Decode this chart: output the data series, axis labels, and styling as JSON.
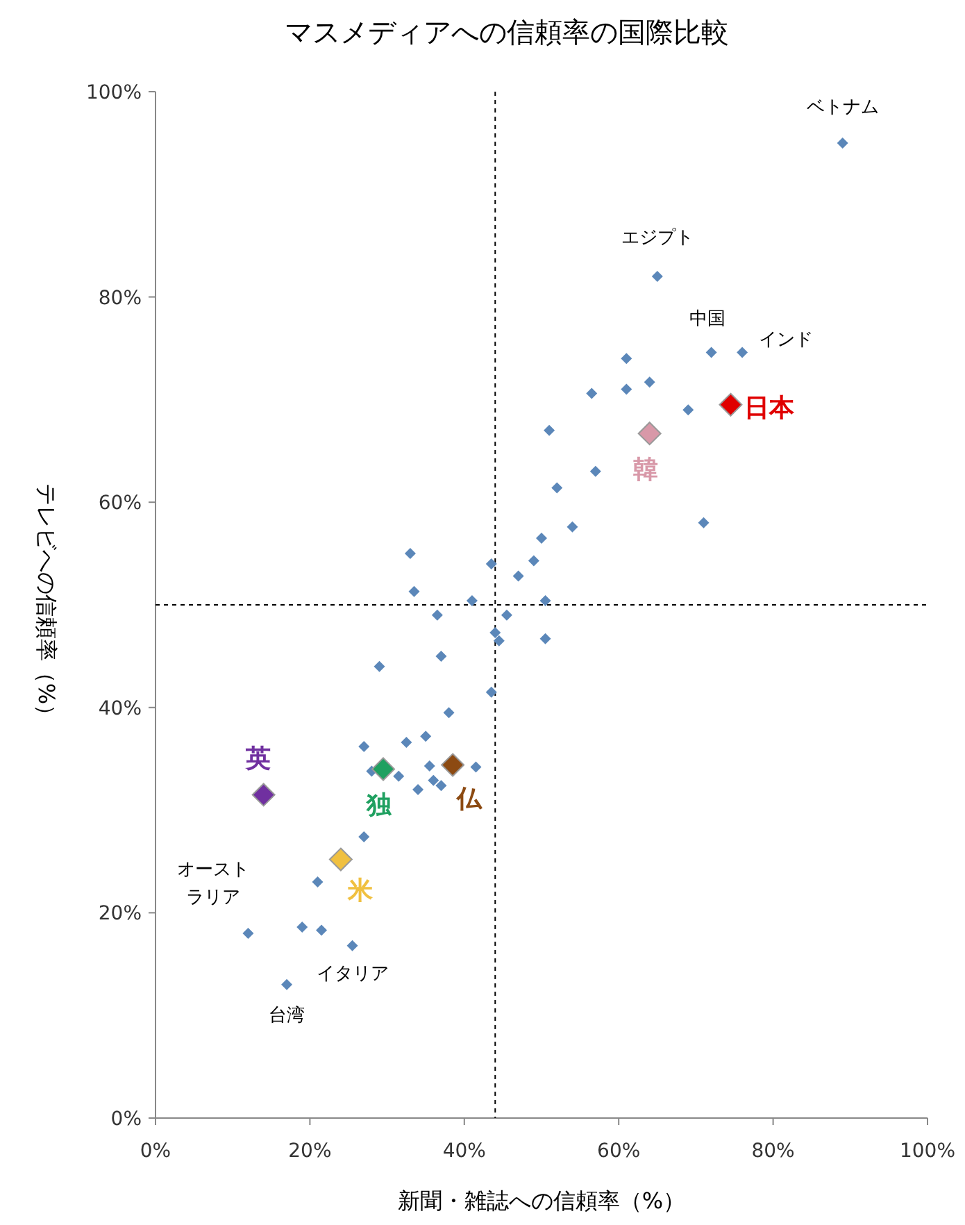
{
  "chart_data": {
    "type": "scatter",
    "title": "マスメディアへの信頼率の国際比較",
    "xlabel": "新聞・雑誌への信頼率（%）",
    "ylabel": "テレビへの信頼率（%）",
    "xlim": [
      0,
      100
    ],
    "ylim": [
      0,
      100
    ],
    "xticks": [
      {
        "value": 0,
        "label": "0%"
      },
      {
        "value": 20,
        "label": "20%"
      },
      {
        "value": 40,
        "label": "40%"
      },
      {
        "value": 60,
        "label": "60%"
      },
      {
        "value": 80,
        "label": "80%"
      },
      {
        "value": 100,
        "label": "100%"
      }
    ],
    "yticks": [
      {
        "value": 0,
        "label": "0%"
      },
      {
        "value": 20,
        "label": "20%"
      },
      {
        "value": 40,
        "label": "40%"
      },
      {
        "value": 60,
        "label": "60%"
      },
      {
        "value": 80,
        "label": "80%"
      },
      {
        "value": 100,
        "label": "100%"
      }
    ],
    "grid": false,
    "legend": false,
    "marker": "diamond",
    "ref_lines": [
      {
        "axis": "x",
        "value": 44,
        "color": "#000000",
        "line_style": "dashed"
      },
      {
        "axis": "y",
        "value": 50,
        "color": "#000000",
        "line_style": "dashed"
      }
    ],
    "series": [
      {
        "color": "#5b87b9",
        "x": [
          89,
          65,
          72,
          76,
          61,
          64,
          61,
          56.5,
          69,
          51,
          57,
          52,
          71,
          54,
          50,
          33,
          49,
          43.5,
          47,
          33.5,
          41,
          50.5,
          36.5,
          45.5,
          44,
          44.5,
          50.5,
          37,
          29,
          43.5,
          38,
          27,
          32.5,
          35,
          28,
          31.5,
          35.5,
          41.5,
          36,
          37,
          34,
          27,
          21,
          12,
          19,
          21.5,
          25.5,
          17
        ],
        "values": [
          95,
          82,
          74.6,
          74.6,
          74,
          71.7,
          71,
          70.6,
          69,
          67,
          63,
          61.4,
          58,
          57.6,
          56.5,
          55,
          54.3,
          54,
          52.8,
          51.3,
          50.4,
          50.4,
          49,
          49,
          47.3,
          46.5,
          46.7,
          45,
          44,
          41.5,
          39.5,
          36.2,
          36.6,
          37.2,
          33.8,
          33.3,
          34.3,
          34.2,
          32.9,
          32.4,
          32,
          27.4,
          23,
          18,
          18.6,
          18.3,
          16.8,
          13
        ]
      },
      {
        "name": "日本",
        "color": "#e00000",
        "x": [
          74.5
        ],
        "values": [
          69.5
        ]
      },
      {
        "name": "韓",
        "color": "#d898a8",
        "x": [
          64
        ],
        "values": [
          66.7
        ]
      },
      {
        "name": "英",
        "color": "#7030a0",
        "x": [
          14
        ],
        "values": [
          31.5
        ]
      },
      {
        "name": "独",
        "color": "#1fa060",
        "x": [
          29.5
        ],
        "values": [
          34
        ]
      },
      {
        "name": "仏",
        "color": "#8c4a12",
        "x": [
          38.5
        ],
        "values": [
          34.4
        ]
      },
      {
        "name": "米",
        "color": "#f0c040",
        "x": [
          24
        ],
        "values": [
          25.2
        ]
      }
    ],
    "annotations": [
      {
        "text": "ベトナム",
        "x": 89,
        "y": 95
      },
      {
        "text": "エジプト",
        "x": 65,
        "y": 82
      },
      {
        "text": "中国",
        "x": 72,
        "y": 74.6
      },
      {
        "text": "インド",
        "x": 76,
        "y": 74.6
      },
      {
        "text": "オーストラリア",
        "x": 12,
        "y": 18
      },
      {
        "text": "イタリア",
        "x": 25.5,
        "y": 16.8
      },
      {
        "text": "台湾",
        "x": 17,
        "y": 13
      }
    ]
  }
}
